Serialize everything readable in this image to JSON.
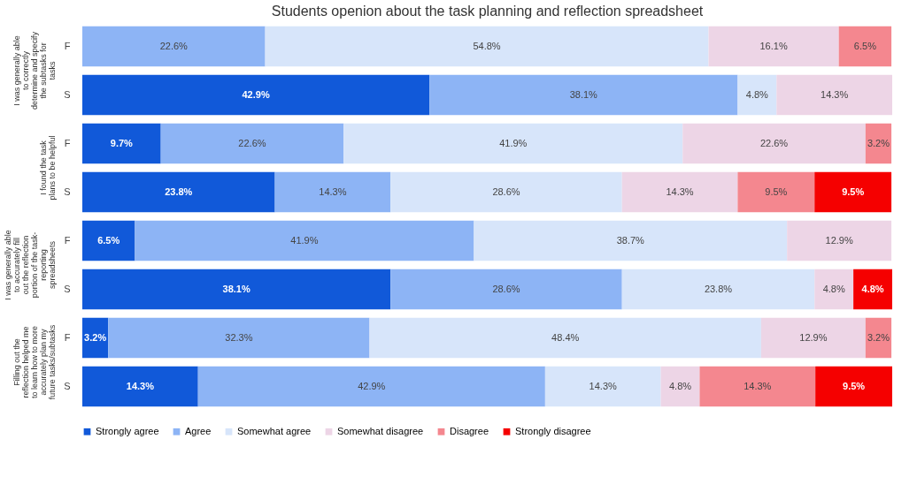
{
  "chart_data": {
    "type": "bar",
    "orientation": "horizontal",
    "stacked": true,
    "legend": "bottom",
    "title": "Students openion about the task planning and reflection spreadsheet",
    "categories": [
      "F",
      "S",
      "F",
      "S",
      "F",
      "S",
      "F",
      "S"
    ],
    "annotations": [
      "I was generally able to correctly determine and specify the subtasks for tasks",
      "I found the task plans to be helpful",
      "I was generally able to accurately fill out the reflection portion of the task-reporting spreadsheets",
      "Filling out the reflection helped me to learn how to more accurately plan my future tasks/subtasks"
    ],
    "series": [
      {
        "name": "Strongly agree",
        "color": "#1159d9",
        "values": [
          null,
          42.9,
          9.7,
          23.8,
          6.5,
          38.1,
          3.2,
          14.3
        ],
        "value_labels": [
          null,
          "42.9%",
          "9.7%",
          "23.8%",
          "6.5%",
          "38.1%",
          "3.2%",
          "14.3%"
        ]
      },
      {
        "name": "Agree",
        "color": "#8db4f5",
        "values": [
          22.6,
          38.1,
          22.6,
          14.3,
          41.9,
          28.6,
          32.3,
          42.9
        ],
        "value_labels": [
          "22.6%",
          "38.1%",
          "22.6%",
          "14.3%",
          "41.9%",
          "28.6%",
          "32.3%",
          "42.9%"
        ]
      },
      {
        "name": "Somewhat agree",
        "color": "#d7e5fa",
        "values": [
          54.8,
          4.8,
          41.9,
          28.6,
          38.7,
          23.8,
          48.4,
          14.3
        ],
        "value_labels": [
          "54.8%",
          "4.8%",
          "41.9%",
          "28.6%",
          "38.7%",
          "23.8%",
          "48.4%",
          "14.3%"
        ]
      },
      {
        "name": "Somewhat disagree",
        "color": "#edd5e6",
        "values": [
          16.1,
          14.3,
          22.6,
          14.3,
          12.9,
          4.8,
          12.9,
          4.8
        ],
        "value_labels": [
          "16.1%",
          "14.3%",
          "22.6%",
          "14.3%",
          "12.9%",
          "4.8%",
          "12.9%",
          "4.8%"
        ]
      },
      {
        "name": "Disagree",
        "color": "#f4878f",
        "values": [
          6.5,
          null,
          3.2,
          9.5,
          null,
          null,
          3.2,
          14.3
        ],
        "value_labels": [
          "6.5%",
          null,
          "3.2%",
          "9.5%",
          null,
          null,
          "3.2%",
          "14.3%"
        ]
      },
      {
        "name": "Strongly disagree",
        "color": "#f50000",
        "values": [
          null,
          null,
          null,
          9.5,
          null,
          4.8,
          null,
          9.5
        ],
        "value_labels": [
          null,
          null,
          null,
          "9.5%",
          null,
          "4.8%",
          null,
          "9.5%"
        ]
      }
    ]
  }
}
